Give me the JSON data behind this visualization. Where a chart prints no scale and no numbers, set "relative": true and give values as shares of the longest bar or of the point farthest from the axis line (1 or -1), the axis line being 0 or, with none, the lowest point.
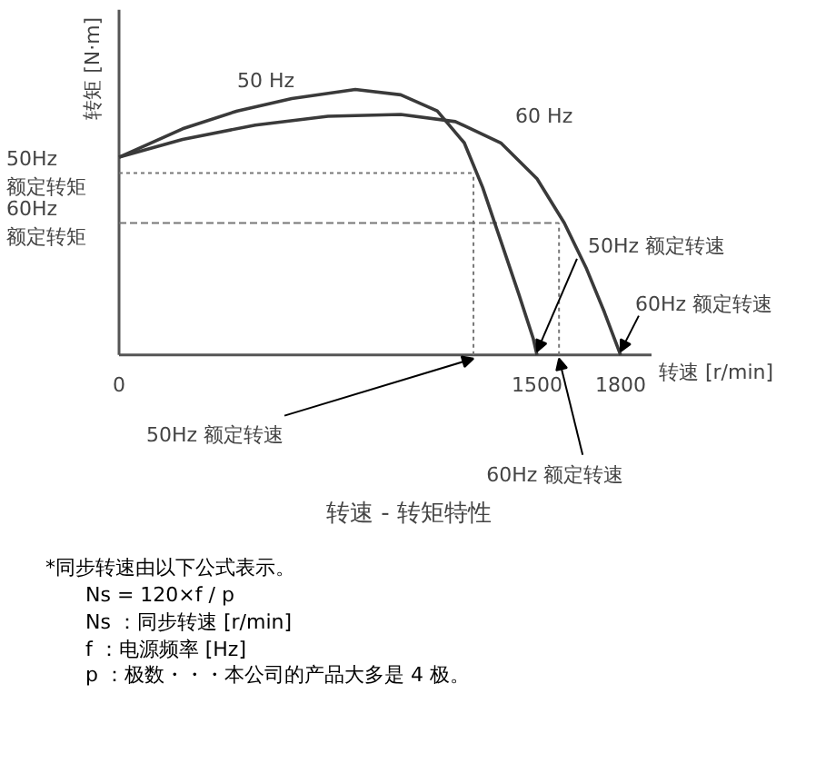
{
  "chart_data": {
    "type": "line",
    "relative": true,
    "title": "转速 - 转矩特性",
    "xlabel": "转速 [r/min]",
    "ylabel": "转矩 [N·m]",
    "xlim": [
      0,
      1911
    ],
    "xticks": [
      0,
      1500,
      1800
    ],
    "grid": false,
    "marker": "none",
    "line_style": "solid",
    "series": [
      {
        "name": "50 Hz",
        "color": "#3a3a3a",
        "x": [
          0,
          228,
          424,
          620,
          848,
          1011,
          1142,
          1239,
          1305,
          1370,
          1435,
          1487,
          1500
        ],
        "values": [
          0.745,
          0.852,
          0.919,
          0.966,
          1.0,
          0.98,
          0.919,
          0.799,
          0.631,
          0.43,
          0.228,
          0.06,
          0
        ]
      },
      {
        "name": "60 Hz",
        "color": "#3a3a3a",
        "x": [
          0,
          228,
          489,
          750,
          1011,
          1207,
          1370,
          1500,
          1598,
          1676,
          1742,
          1800
        ],
        "values": [
          0.745,
          0.812,
          0.866,
          0.899,
          0.906,
          0.879,
          0.799,
          0.664,
          0.497,
          0.329,
          0.161,
          0
        ]
      }
    ],
    "ref_lines": [
      {
        "axis": "y",
        "value": 0.685,
        "label": "50Hz 额定转矩",
        "line_style": "dotted",
        "color": "#777777"
      },
      {
        "axis": "y",
        "value": 0.497,
        "label": "60Hz 额定转矩",
        "line_style": "dashed",
        "color": "#777777"
      },
      {
        "axis": "x",
        "value": 1272,
        "line_style": "dotted",
        "color": "#777777"
      },
      {
        "axis": "x",
        "value": 1579,
        "line_style": "dotted",
        "color": "#777777"
      }
    ],
    "annotations": [
      {
        "text": "50Hz 额定转速",
        "x": 1500,
        "y": 0
      },
      {
        "text": "60Hz 额定转速",
        "x": 1800,
        "y": 0
      },
      {
        "text": "50Hz 额定转速",
        "x": 1272,
        "y": 0
      },
      {
        "text": "60Hz 额定转速",
        "x": 1579,
        "y": 0
      },
      "*同步转速由以下公式表示。",
      "Ns = 120×f / p",
      "Ns ：同步转速 [r/min]",
      "f ：电源频率 [Hz]",
      "p ：极数・・・本公司的产品大多是 4 极。"
    ]
  }
}
